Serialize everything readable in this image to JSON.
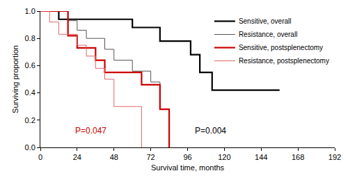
{
  "chart_data": {
    "type": "line",
    "line_style": "step",
    "xlabel": "Survival time, months",
    "ylabel": "Surviving proportion",
    "xlim": [
      0,
      192
    ],
    "xticks": [
      0,
      24,
      48,
      72,
      96,
      120,
      144,
      168,
      192
    ],
    "ylim": [
      0,
      1.0
    ],
    "yticks": [
      {
        "value": 0,
        "label": "0.0"
      },
      0.2,
      0.4,
      0.6,
      0.8,
      {
        "value": 1,
        "label": "1.0"
      }
    ],
    "grid": false,
    "legend": "top right",
    "series": [
      {
        "name": "Sensitive, overall",
        "color": "#000000",
        "x": [
          0,
          12,
          60,
          78,
          98,
          104,
          112,
          156
        ],
        "values": [
          1.0,
          0.94,
          0.88,
          0.78,
          0.68,
          0.55,
          0.42,
          0.42
        ]
      },
      {
        "name": "Resistance, overall",
        "color": "#555555",
        "x": [
          0,
          18,
          24,
          30,
          42,
          48,
          60,
          72,
          78,
          84
        ],
        "values": [
          1.0,
          0.93,
          0.86,
          0.8,
          0.72,
          0.64,
          0.56,
          0.48,
          0.28,
          0.0
        ]
      },
      {
        "name": "Sensitive, postsplenectomy",
        "color": "#cc0000",
        "x": [
          0,
          18,
          24,
          36,
          42,
          66,
          78,
          84
        ],
        "values": [
          1.0,
          0.82,
          0.73,
          0.64,
          0.55,
          0.46,
          0.28,
          0.0
        ]
      },
      {
        "name": "Resistance, postsplenectomy",
        "color": "#e06666",
        "x": [
          0,
          6,
          12,
          24,
          30,
          36,
          42,
          48,
          60,
          66
        ],
        "values": [
          1.0,
          0.92,
          0.83,
          0.75,
          0.67,
          0.58,
          0.5,
          0.3,
          0.3,
          0.0
        ]
      }
    ],
    "annotations": [
      {
        "text": "P=0.047",
        "x": 22,
        "y": 0.12,
        "color": "#cc0000"
      },
      {
        "text": "P=0.004",
        "x": 100,
        "y": 0.12,
        "color": "#000000"
      }
    ]
  }
}
